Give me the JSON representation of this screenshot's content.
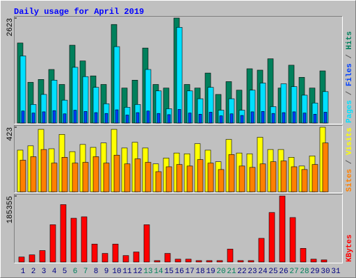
{
  "legend_separator": " / ",
  "chart_data": [
    {
      "type": "bar",
      "title": "Daily usage for April 2019",
      "ylim": [
        0,
        2623
      ],
      "yticks": [
        2623
      ],
      "series": [
        {
          "name": "Hits",
          "color": "#00805c",
          "label_color": "#00805c",
          "values": [
            2000,
            1017,
            1089,
            1338,
            964,
            1945,
            1552,
            1178,
            964,
            2463,
            874,
            1071,
            1874,
            964,
            874,
            2623,
            964,
            874,
            1249,
            714,
            1035,
            821,
            1356,
            1321,
            1606,
            874,
            1445,
            1142,
            874,
            1303,
            0
          ]
        },
        {
          "name": "Files",
          "color": "#0040ff",
          "label_color": "#0040ff",
          "values": [
            300,
            250,
            280,
            310,
            230,
            320,
            290,
            260,
            240,
            330,
            200,
            260,
            300,
            240,
            210,
            340,
            250,
            220,
            270,
            180,
            230,
            190,
            280,
            290,
            240,
            260,
            280,
            250,
            220,
            270,
            0
          ]
        },
        {
          "name": "Pages",
          "color": "#00e0ff",
          "label_color": "#00e0ff",
          "values": [
            1677,
            464,
            714,
            1071,
            571,
            1392,
            1160,
            892,
            482,
            1909,
            393,
            464,
            1338,
            803,
            357,
            2391,
            803,
            607,
            892,
            321,
            607,
            321,
            821,
            999,
            410,
            981,
            910,
            696,
            500,
            785,
            0
          ]
        }
      ]
    },
    {
      "type": "bar",
      "ylim": [
        0,
        423
      ],
      "yticks": [
        423
      ],
      "series": [
        {
          "name": "Visits",
          "color": "#ffff00",
          "label_color": "#ffff00",
          "values": [
            273,
            301,
            409,
            282,
            376,
            263,
            310,
            291,
            320,
            409,
            287,
            324,
            287,
            183,
            221,
            254,
            249,
            315,
            273,
            197,
            343,
            254,
            249,
            357,
            277,
            277,
            226,
            169,
            235,
            423,
            0
          ]
        },
        {
          "name": "Sites",
          "color": "#ff8000",
          "label_color": "#ff8000",
          "values": [
            207,
            230,
            277,
            188,
            226,
            188,
            193,
            230,
            188,
            240,
            183,
            216,
            193,
            132,
            164,
            179,
            169,
            211,
            188,
            146,
            244,
            169,
            160,
            183,
            197,
            202,
            164,
            146,
            179,
            320,
            0
          ]
        }
      ]
    },
    {
      "type": "bar",
      "ylim": [
        0,
        185355
      ],
      "yticks": [
        185355
      ],
      "categories": [
        "1",
        "2",
        "3",
        "4",
        "5",
        "6",
        "7",
        "8",
        "9",
        "10",
        "11",
        "12",
        "13",
        "14",
        "15",
        "16",
        "17",
        "18",
        "19",
        "20",
        "21",
        "22",
        "23",
        "24",
        "25",
        "26",
        "27",
        "28",
        "29",
        "30",
        "31"
      ],
      "category_colors": [
        "#000080",
        "#000080",
        "#000080",
        "#000080",
        "#000080",
        "#00805c",
        "#00805c",
        "#000080",
        "#000080",
        "#000080",
        "#000080",
        "#000080",
        "#00805c",
        "#00805c",
        "#000080",
        "#000080",
        "#000080",
        "#000080",
        "#000080",
        "#00805c",
        "#00805c",
        "#000080",
        "#000080",
        "#000080",
        "#000080",
        "#000080",
        "#00805c",
        "#00805c",
        "#000080",
        "#000080",
        "#000080"
      ],
      "series": [
        {
          "name": "KBytes",
          "color": "#ff0000",
          "label_color": "#ff0000",
          "values": [
            14103,
            20147,
            32235,
            104767,
            161178,
            122898,
            126928,
            50368,
            24177,
            50368,
            18132,
            28206,
            104767,
            4029,
            24177,
            8059,
            8059,
            4029,
            4029,
            4029,
            36265,
            4029,
            4029,
            66486,
            139016,
            185355,
            124913,
            38279,
            8059,
            6044,
            0
          ]
        }
      ]
    }
  ]
}
